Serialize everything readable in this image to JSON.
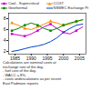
{
  "chart_data": {
    "type": "line",
    "x": [
      1984,
      1986,
      1988,
      1990,
      1992,
      1994,
      1996,
      1998,
      2000,
      2002,
      2004,
      2006
    ],
    "series": [
      {
        "name": "Coal - Supercritical",
        "color": "#cc00cc",
        "marker": "square",
        "values": [
          5.2,
          5.0,
          4.8,
          5.2,
          5.8,
          6.5,
          7.0,
          6.2,
          5.5,
          5.2,
          5.8,
          6.5
        ]
      },
      {
        "name": "CCGT",
        "color": "#ff8c00",
        "marker": "triangle",
        "values": [
          7.2,
          6.8,
          6.2,
          6.0,
          6.5,
          7.0,
          7.5,
          7.2,
          6.8,
          7.0,
          7.5,
          7.8
        ]
      },
      {
        "name": "Geothermal",
        "color": "#008800",
        "marker": "square",
        "values": [
          5.8,
          6.2,
          6.8,
          7.2,
          6.8,
          6.2,
          5.8,
          6.2,
          6.8,
          7.2,
          7.5,
          7.8
        ]
      },
      {
        "name": "NSWEC Exchange Pr",
        "color": "#0044cc",
        "values": [
          2.0,
          2.2,
          2.5,
          2.8,
          3.0,
          3.3,
          3.8,
          4.5,
          5.5,
          6.2,
          6.8,
          7.0
        ]
      }
    ],
    "xlim": [
      1983,
      2007
    ],
    "xticks": [
      1985,
      1990,
      1995,
      2000,
      2005
    ],
    "ylim": [
      1.5,
      9.0
    ],
    "yticks": [
      2,
      4,
      6,
      8
    ],
    "grid": false,
    "legend": "top",
    "annotation": "Calculations are nominal costs at\nexchange rate of the day,\n- fuel cost of the day,\n- WACC = 8%,\n- costs andescalations as per recent\nEast Padmore reports"
  }
}
